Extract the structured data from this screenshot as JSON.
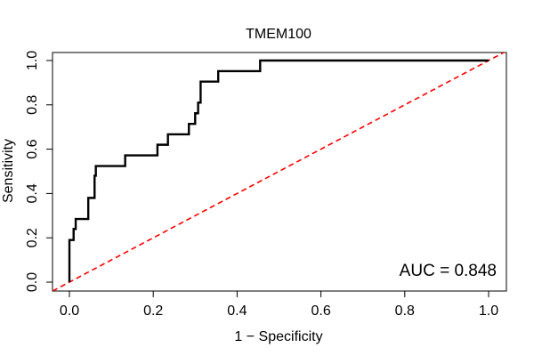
{
  "chart_data": {
    "type": "line",
    "title": "TMEM100",
    "xlabel": "1 − Specificity",
    "ylabel": "Sensitivity",
    "xlim": [
      0,
      1
    ],
    "ylim": [
      0,
      1
    ],
    "x_ticks": [
      "0.0",
      "0.2",
      "0.4",
      "0.6",
      "0.8",
      "1.0"
    ],
    "y_ticks": [
      "0.0",
      "0.2",
      "0.4",
      "0.6",
      "0.8",
      "1.0"
    ],
    "grid": false,
    "annotation": "AUC = 0.848",
    "annotation_position": "bottom-right",
    "series": [
      {
        "color": "#000000",
        "style": "solid",
        "points": [
          [
            0.0,
            0.0
          ],
          [
            0.0,
            0.19
          ],
          [
            0.01,
            0.19
          ],
          [
            0.01,
            0.24
          ],
          [
            0.015,
            0.24
          ],
          [
            0.015,
            0.285
          ],
          [
            0.045,
            0.285
          ],
          [
            0.045,
            0.38
          ],
          [
            0.06,
            0.38
          ],
          [
            0.06,
            0.48
          ],
          [
            0.063,
            0.48
          ],
          [
            0.063,
            0.524
          ],
          [
            0.133,
            0.524
          ],
          [
            0.133,
            0.572
          ],
          [
            0.21,
            0.572
          ],
          [
            0.21,
            0.62
          ],
          [
            0.235,
            0.62
          ],
          [
            0.235,
            0.667
          ],
          [
            0.285,
            0.667
          ],
          [
            0.285,
            0.714
          ],
          [
            0.3,
            0.714
          ],
          [
            0.3,
            0.762
          ],
          [
            0.307,
            0.762
          ],
          [
            0.307,
            0.81
          ],
          [
            0.313,
            0.81
          ],
          [
            0.313,
            0.905
          ],
          [
            0.355,
            0.905
          ],
          [
            0.355,
            0.952
          ],
          [
            0.455,
            0.952
          ],
          [
            0.455,
            1.0
          ],
          [
            1.0,
            1.0
          ]
        ]
      },
      {
        "color": "#ff0000",
        "style": "dashed",
        "points": [
          [
            -0.04,
            -0.04
          ],
          [
            1.04,
            1.04
          ]
        ]
      }
    ]
  }
}
